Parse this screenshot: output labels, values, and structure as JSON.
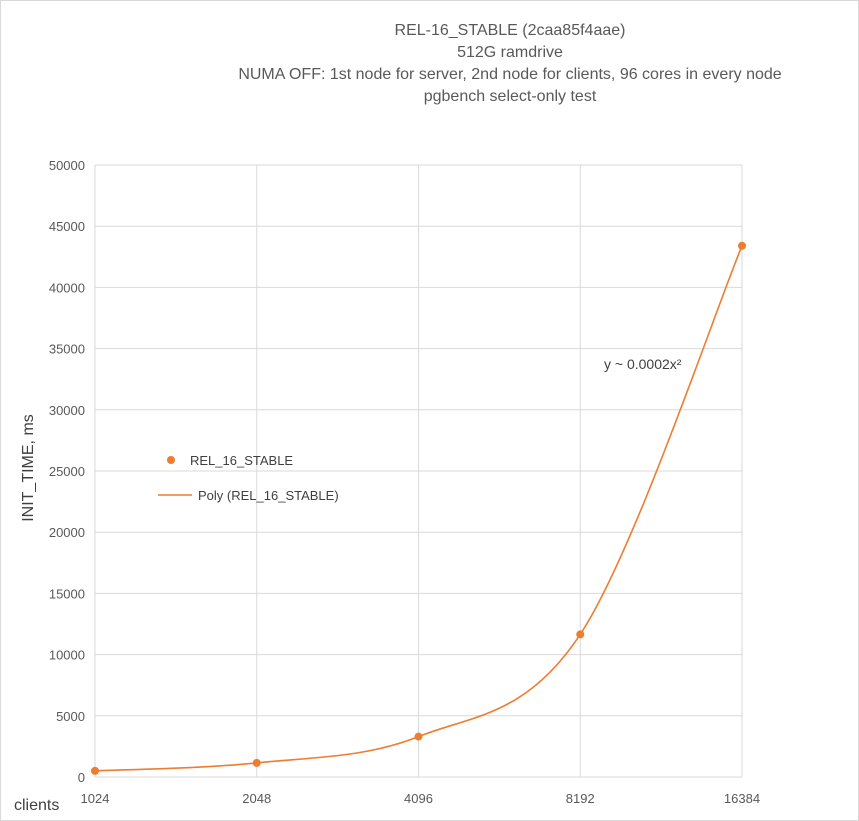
{
  "chart_data": {
    "type": "scatter",
    "title_lines": [
      "REL-16_STABLE (2caa85f4aae)",
      "512G ramdrive",
      "NUMA OFF: 1st node for server, 2nd node for clients, 96 cores in every node",
      "pgbench select-only test"
    ],
    "xlabel": "clients",
    "ylabel": "INIT_TIME, ms",
    "categories": [
      "1024",
      "2048",
      "4096",
      "8192",
      "16384"
    ],
    "ylim": [
      0,
      50000
    ],
    "yticks": [
      0,
      5000,
      10000,
      15000,
      20000,
      25000,
      30000,
      35000,
      40000,
      45000,
      50000
    ],
    "grid": true,
    "series": [
      {
        "name": "REL_16_STABLE",
        "values": [
          500,
          1150,
          3300,
          11650,
          43400
        ],
        "color": "#ED7D31",
        "marker": "circle"
      }
    ],
    "trendline": {
      "name": "Poly (REL_16_STABLE)",
      "color": "#ED7D31",
      "annotation": "y ~ 0.0002x²"
    },
    "legend_position": "left"
  }
}
